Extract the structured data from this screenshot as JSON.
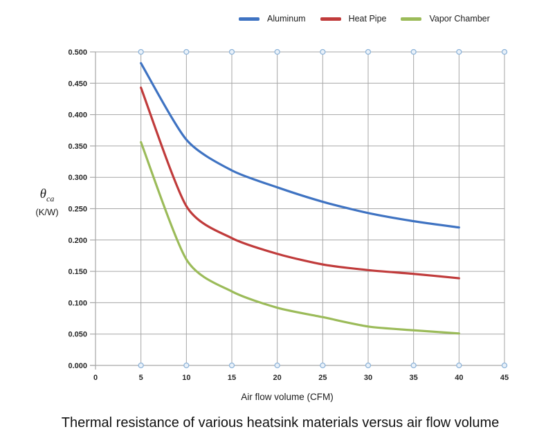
{
  "chart_data": {
    "type": "line",
    "title": "Thermal resistance of various heatsink materials versus air flow volume",
    "xlabel": "Air flow volume (CFM)",
    "ylabel_symbol": "θ",
    "ylabel_subscript": "ca",
    "ylabel_units": "(K/W)",
    "x": [
      5,
      10,
      15,
      20,
      25,
      30,
      35,
      40
    ],
    "series": [
      {
        "name": "Aluminum",
        "color": "#3F73C2",
        "values": [
          0.482,
          0.36,
          0.311,
          0.284,
          0.261,
          0.243,
          0.23,
          0.22
        ]
      },
      {
        "name": "Heat Pipe",
        "color": "#C03B3B",
        "values": [
          0.443,
          0.254,
          0.203,
          0.178,
          0.161,
          0.152,
          0.146,
          0.139
        ]
      },
      {
        "name": "Vapor Chamber",
        "color": "#9BBB59",
        "values": [
          0.356,
          0.169,
          0.118,
          0.092,
          0.077,
          0.062,
          0.056,
          0.051
        ]
      }
    ],
    "xlim": [
      0,
      45
    ],
    "ylim": [
      0.0,
      0.5
    ],
    "x_ticks": [
      "0",
      "5",
      "10",
      "15",
      "20",
      "25",
      "30",
      "35",
      "40",
      "45"
    ],
    "y_ticks": [
      "0.000",
      "0.050",
      "0.100",
      "0.150",
      "0.200",
      "0.250",
      "0.300",
      "0.350",
      "0.400",
      "0.450",
      "0.500"
    ],
    "grid": true,
    "legend_position": "top-center",
    "gridline_end_markers": "open circles at top and bottom of each vertical gridline",
    "colors": {
      "gridline": "#A6A6A6",
      "axis": "#A6A6A6",
      "marker_stroke": "#8EB4D9",
      "marker_fill": "#E9F1F9",
      "tick_text": "#262626",
      "label_text": "#1A1A1A"
    }
  }
}
